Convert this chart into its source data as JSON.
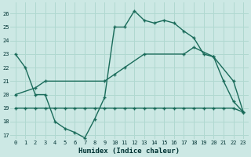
{
  "xlabel": "Humidex (Indice chaleur)",
  "bg_color": "#cce8e4",
  "grid_color": "#b0d8d0",
  "line_color": "#1a6b5a",
  "xlim": [
    -0.5,
    23.5
  ],
  "ylim": [
    16.7,
    26.8
  ],
  "xticks": [
    0,
    1,
    2,
    3,
    4,
    5,
    6,
    7,
    8,
    9,
    10,
    11,
    12,
    13,
    14,
    15,
    16,
    17,
    18,
    19,
    20,
    21,
    22,
    23
  ],
  "yticks": [
    17,
    18,
    19,
    20,
    21,
    22,
    23,
    24,
    25,
    26
  ],
  "line1_x": [
    0,
    1,
    2,
    3,
    4,
    5,
    6,
    7,
    8,
    9,
    10,
    11,
    12,
    13,
    14,
    15,
    16,
    17,
    18,
    19,
    20,
    21,
    22,
    23
  ],
  "line1_y": [
    23,
    22,
    20,
    20,
    18,
    17.5,
    17.2,
    16.8,
    18.2,
    19.8,
    25,
    25,
    26.2,
    25.5,
    25.3,
    25.5,
    25.3,
    24.7,
    24.2,
    23,
    22.8,
    21,
    19.5,
    18.7
  ],
  "line2_x": [
    0,
    1,
    2,
    3,
    4,
    5,
    6,
    7,
    8,
    9,
    10,
    11,
    12,
    13,
    14,
    15,
    16,
    17,
    18,
    19,
    20,
    21,
    22,
    23
  ],
  "line2_y": [
    19,
    19,
    19,
    19,
    19,
    19,
    19,
    19,
    19,
    19,
    19,
    19,
    19,
    19,
    19,
    19,
    19,
    19,
    19,
    19,
    19,
    19,
    19,
    18.7
  ],
  "line3_x": [
    0,
    2,
    3,
    9,
    10,
    11,
    13,
    17,
    18,
    20,
    22,
    23
  ],
  "line3_y": [
    20,
    20.5,
    21,
    21,
    21.5,
    22,
    23,
    23,
    23.5,
    22.8,
    21,
    18.7
  ]
}
